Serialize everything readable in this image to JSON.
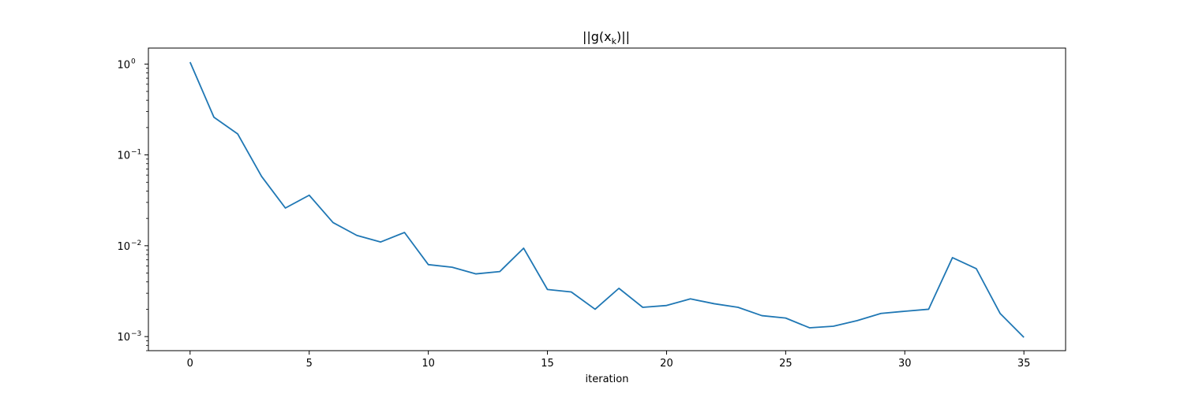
{
  "chart_data": {
    "type": "line",
    "title": "||g(x_k)||",
    "title_parts": {
      "pre": "||g(x",
      "sub": "k",
      "post": ")||"
    },
    "xlabel": "iteration",
    "ylabel": "",
    "yscale": "log",
    "xlim": [
      -1.75,
      36.75
    ],
    "ylim": [
      0.0007,
      1.5
    ],
    "grid": false,
    "color": "#1f77b4",
    "x_ticks": [
      0,
      5,
      10,
      15,
      20,
      25,
      30,
      35
    ],
    "y_ticks": [
      {
        "value": 1,
        "base": "10",
        "exp": "0"
      },
      {
        "value": 0.1,
        "base": "10",
        "exp": "−1"
      },
      {
        "value": 0.01,
        "base": "10",
        "exp": "−2"
      },
      {
        "value": 0.001,
        "base": "10",
        "exp": "−3"
      }
    ],
    "series": [
      {
        "x": [
          0,
          1,
          2,
          3,
          4,
          5,
          6,
          7,
          8,
          9,
          10,
          11,
          12,
          13,
          14,
          15,
          16,
          17,
          18,
          19,
          20,
          21,
          22,
          23,
          24,
          25,
          26,
          27,
          28,
          29,
          30,
          31,
          32,
          33,
          34,
          35
        ],
        "values": [
          1.05,
          0.26,
          0.17,
          0.058,
          0.026,
          0.036,
          0.018,
          0.013,
          0.011,
          0.014,
          0.0062,
          0.0058,
          0.0049,
          0.0052,
          0.0094,
          0.0033,
          0.0031,
          0.002,
          0.0034,
          0.0021,
          0.0022,
          0.0026,
          0.0023,
          0.0021,
          0.0017,
          0.0016,
          0.00125,
          0.0013,
          0.0015,
          0.0018,
          0.0019,
          0.002,
          0.0074,
          0.0056,
          0.0018,
          0.00098
        ]
      }
    ]
  }
}
